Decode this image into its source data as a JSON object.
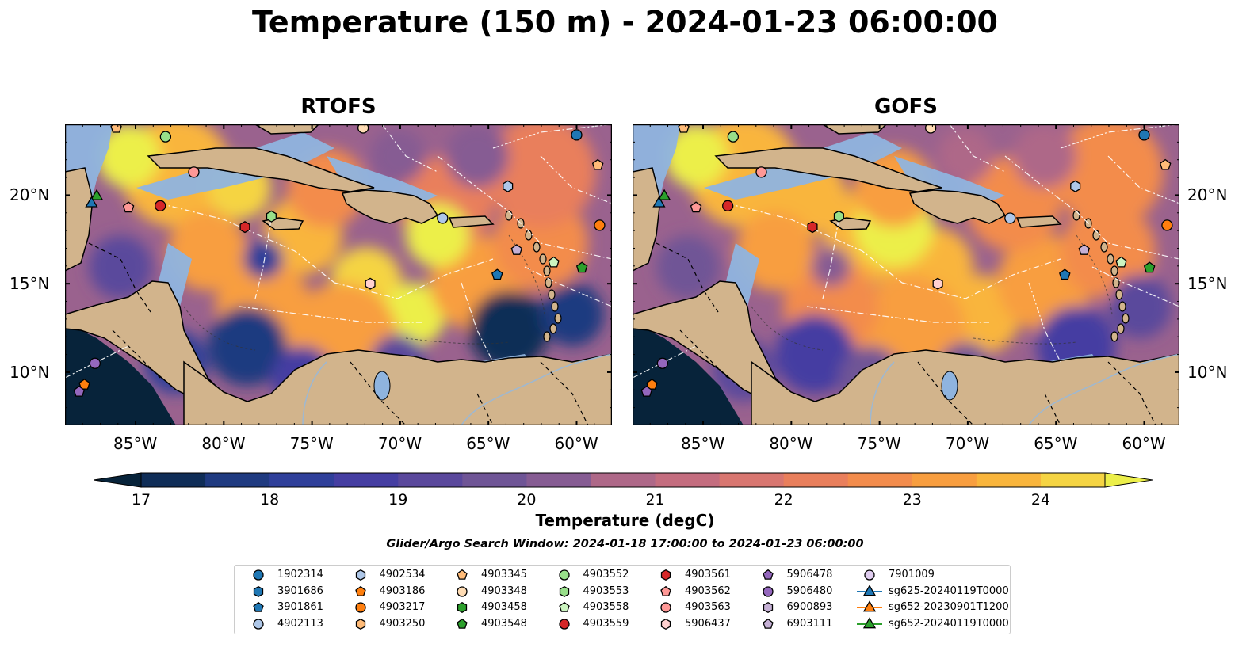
{
  "figure": {
    "title": "Temperature (150 m) - 2024-01-23 06:00:00",
    "panels": [
      {
        "title": "RTOFS"
      },
      {
        "title": "GOFS"
      }
    ],
    "lon_ticks": [
      "85°W",
      "80°W",
      "75°W",
      "70°W",
      "65°W",
      "60°W"
    ],
    "lat_ticks": [
      "20°N",
      "15°N",
      "10°N"
    ],
    "map_extent": {
      "lon": [
        -89,
        -58
      ],
      "lat": [
        7,
        24
      ]
    },
    "colorbar": {
      "label": "Temperature (degC)",
      "range": [
        17,
        24.5
      ],
      "ticks": [
        "17",
        "18",
        "19",
        "20",
        "21",
        "22",
        "23",
        "24"
      ],
      "extend": "both",
      "colormap": "thermal"
    },
    "search_window": "Glider/Argo Search Window: 2024-01-18 17:00:00 to 2024-01-23 06:00:00"
  },
  "colors": {
    "land": "#d2b48c",
    "shallow": "#8fb4df",
    "cmap": [
      "#07233a",
      "#0f2d57",
      "#1f3a80",
      "#2f3f9a",
      "#453ea2",
      "#5a489c",
      "#6f5596",
      "#865c93",
      "#9a628e",
      "#ae6888",
      "#c46d7f",
      "#d87670",
      "#e97f5c",
      "#f38c4c",
      "#f89e3f",
      "#f9b53c",
      "#f5d443",
      "#ecef4a"
    ]
  },
  "legend": {
    "items": [
      {
        "label": "1902314",
        "marker": "circle",
        "color": "#1f77b4"
      },
      {
        "label": "3901686",
        "marker": "hexagon",
        "color": "#1f77b4"
      },
      {
        "label": "3901861",
        "marker": "pentagon",
        "color": "#1f77b4"
      },
      {
        "label": "4902113",
        "marker": "circle",
        "color": "#aec7e8"
      },
      {
        "label": "4902534",
        "marker": "hexagon",
        "color": "#aec7e8"
      },
      {
        "label": "4903186",
        "marker": "pentagon",
        "color": "#ff7f0e"
      },
      {
        "label": "4903217",
        "marker": "circle",
        "color": "#ff7f0e"
      },
      {
        "label": "4903250",
        "marker": "hexagon",
        "color": "#ffbb78"
      },
      {
        "label": "4903345",
        "marker": "pentagon",
        "color": "#ffbb78"
      },
      {
        "label": "4903348",
        "marker": "circle",
        "color": "#ffdcb4"
      },
      {
        "label": "4903458",
        "marker": "hexagon",
        "color": "#2ca02c"
      },
      {
        "label": "4903548",
        "marker": "pentagon",
        "color": "#2ca02c"
      },
      {
        "label": "4903552",
        "marker": "circle",
        "color": "#98df8a"
      },
      {
        "label": "4903553",
        "marker": "hexagon",
        "color": "#98df8a"
      },
      {
        "label": "4903558",
        "marker": "pentagon",
        "color": "#ccf5c0"
      },
      {
        "label": "4903559",
        "marker": "circle",
        "color": "#d62728"
      },
      {
        "label": "4903561",
        "marker": "hexagon",
        "color": "#d62728"
      },
      {
        "label": "4903562",
        "marker": "pentagon",
        "color": "#ff9896"
      },
      {
        "label": "4903563",
        "marker": "circle",
        "color": "#ff9896"
      },
      {
        "label": "5906437",
        "marker": "hexagon",
        "color": "#ffd0cf"
      },
      {
        "label": "5906478",
        "marker": "pentagon",
        "color": "#9467bd"
      },
      {
        "label": "5906480",
        "marker": "circle",
        "color": "#9467bd"
      },
      {
        "label": "6900893",
        "marker": "hexagon",
        "color": "#c5b0d5"
      },
      {
        "label": "6903111",
        "marker": "pentagon",
        "color": "#c5b0d5"
      },
      {
        "label": "7901009",
        "marker": "circle",
        "color": "#e0cdf0"
      },
      {
        "label": "sg625-20240119T0000",
        "marker": "triangle-line",
        "color": "#1f77b4"
      },
      {
        "label": "sg652-20230901T1200",
        "marker": "triangle-line",
        "color": "#ff7f0e"
      },
      {
        "label": "sg652-20240119T0000",
        "marker": "triangle-line",
        "color": "#2ca02c"
      }
    ]
  },
  "platforms": [
    {
      "id": "1902314",
      "lon": -60.0,
      "lat": 23.4
    },
    {
      "id": "4903345",
      "lon": -86.1,
      "lat": 23.8
    },
    {
      "id": "4903348",
      "lon": -72.1,
      "lat": 23.8
    },
    {
      "id": "4903552",
      "lon": -83.3,
      "lat": 23.3
    },
    {
      "id": "4903563",
      "lon": -81.7,
      "lat": 21.3
    },
    {
      "id": "4903345",
      "lon": -58.8,
      "lat": 21.7
    },
    {
      "id": "4902534",
      "lon": -63.9,
      "lat": 20.5
    },
    {
      "id": "sg652-20240119T0000",
      "lon": -87.2,
      "lat": 20.0
    },
    {
      "id": "sg625-20240119T0000",
      "lon": -87.5,
      "lat": 19.6
    },
    {
      "id": "4903562",
      "lon": -85.4,
      "lat": 19.3
    },
    {
      "id": "4903559",
      "lon": -83.6,
      "lat": 19.4
    },
    {
      "id": "4903553",
      "lon": -77.3,
      "lat": 18.8
    },
    {
      "id": "4902113",
      "lon": -67.6,
      "lat": 18.7
    },
    {
      "id": "4903561",
      "lon": -78.8,
      "lat": 18.2
    },
    {
      "id": "4903217",
      "lon": -58.7,
      "lat": 18.3
    },
    {
      "id": "6903111",
      "lon": -63.4,
      "lat": 16.9
    },
    {
      "id": "4903558",
      "lon": -61.3,
      "lat": 16.2
    },
    {
      "id": "4903548",
      "lon": -59.7,
      "lat": 15.9
    },
    {
      "id": "3901861",
      "lon": -64.5,
      "lat": 15.5
    },
    {
      "id": "5906437",
      "lon": -71.7,
      "lat": 15.0
    },
    {
      "id": "5906480",
      "lon": -87.3,
      "lat": 10.5
    },
    {
      "id": "4903186",
      "lon": -87.9,
      "lat": 9.3
    },
    {
      "id": "5906478",
      "lon": -88.2,
      "lat": 8.9
    }
  ]
}
